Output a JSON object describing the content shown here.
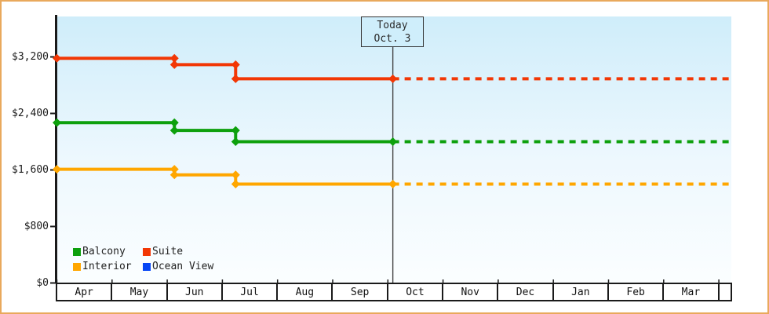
{
  "chart_data": {
    "type": "line",
    "description": "Cabin price history by month with dotted forecast after today",
    "x_categories": [
      "Apr",
      "May",
      "Jun",
      "Jul",
      "Aug",
      "Sep",
      "Oct",
      "Nov",
      "Dec",
      "Jan",
      "Feb",
      "Mar"
    ],
    "y_axis": {
      "ticks": [
        {
          "value": 3200,
          "label": "$3,200"
        },
        {
          "value": 2400,
          "label": "$2,400"
        },
        {
          "value": 1600,
          "label": "$1,600"
        },
        {
          "value": 800,
          "label": "$800"
        },
        {
          "value": 0,
          "label": "$0"
        }
      ],
      "min": 0,
      "max": 3560
    },
    "today_marker": {
      "line1": "Today",
      "line2": "Oct. 3",
      "month_position": 6.09
    },
    "series": [
      {
        "name": "Suite",
        "color": "#f23705",
        "segments": [
          {
            "from_month": 0,
            "to_month": 2.13,
            "price": 3180
          },
          {
            "from_month": 2.13,
            "to_month": 3.24,
            "price": 3090
          },
          {
            "from_month": 3.24,
            "to_month": 6.09,
            "price": 2890
          }
        ],
        "forecast": {
          "price": 2890,
          "to_month": 12.21,
          "style": "dotted"
        }
      },
      {
        "name": "Balcony",
        "color": "#0da00d",
        "segments": [
          {
            "from_month": 0,
            "to_month": 2.13,
            "price": 2270
          },
          {
            "from_month": 2.13,
            "to_month": 3.24,
            "price": 2160
          },
          {
            "from_month": 3.24,
            "to_month": 6.09,
            "price": 2000
          }
        ],
        "forecast": {
          "price": 2000,
          "to_month": 12.21,
          "style": "dotted"
        }
      },
      {
        "name": "Interior",
        "color": "#ffa600",
        "segments": [
          {
            "from_month": 0,
            "to_month": 2.13,
            "price": 1610
          },
          {
            "from_month": 2.13,
            "to_month": 3.24,
            "price": 1530
          },
          {
            "from_month": 3.24,
            "to_month": 6.09,
            "price": 1400
          }
        ],
        "forecast": {
          "price": 1400,
          "to_month": 12.21,
          "style": "dotted"
        }
      },
      {
        "name": "Ocean View",
        "color": "#0545f5",
        "segments": [],
        "forecast": null
      }
    ],
    "legend": {
      "position": "bottom-left",
      "entries": [
        {
          "label": "Balcony",
          "color": "#0da00d"
        },
        {
          "label": "Suite",
          "color": "#f23705"
        },
        {
          "label": "Interior",
          "color": "#ffa600"
        },
        {
          "label": "Ocean View",
          "color": "#0545f5"
        }
      ]
    }
  },
  "colors": {
    "outer_border": "#e9a95c",
    "plot_bg_top": "#cfedfa",
    "plot_bg_bottom": "#fbfeff",
    "axis": "#1a1a1a",
    "today_line": "#444444",
    "today_box_bg": "#cfeefb",
    "today_box_border": "#333333",
    "text": "#1c1c1c"
  }
}
